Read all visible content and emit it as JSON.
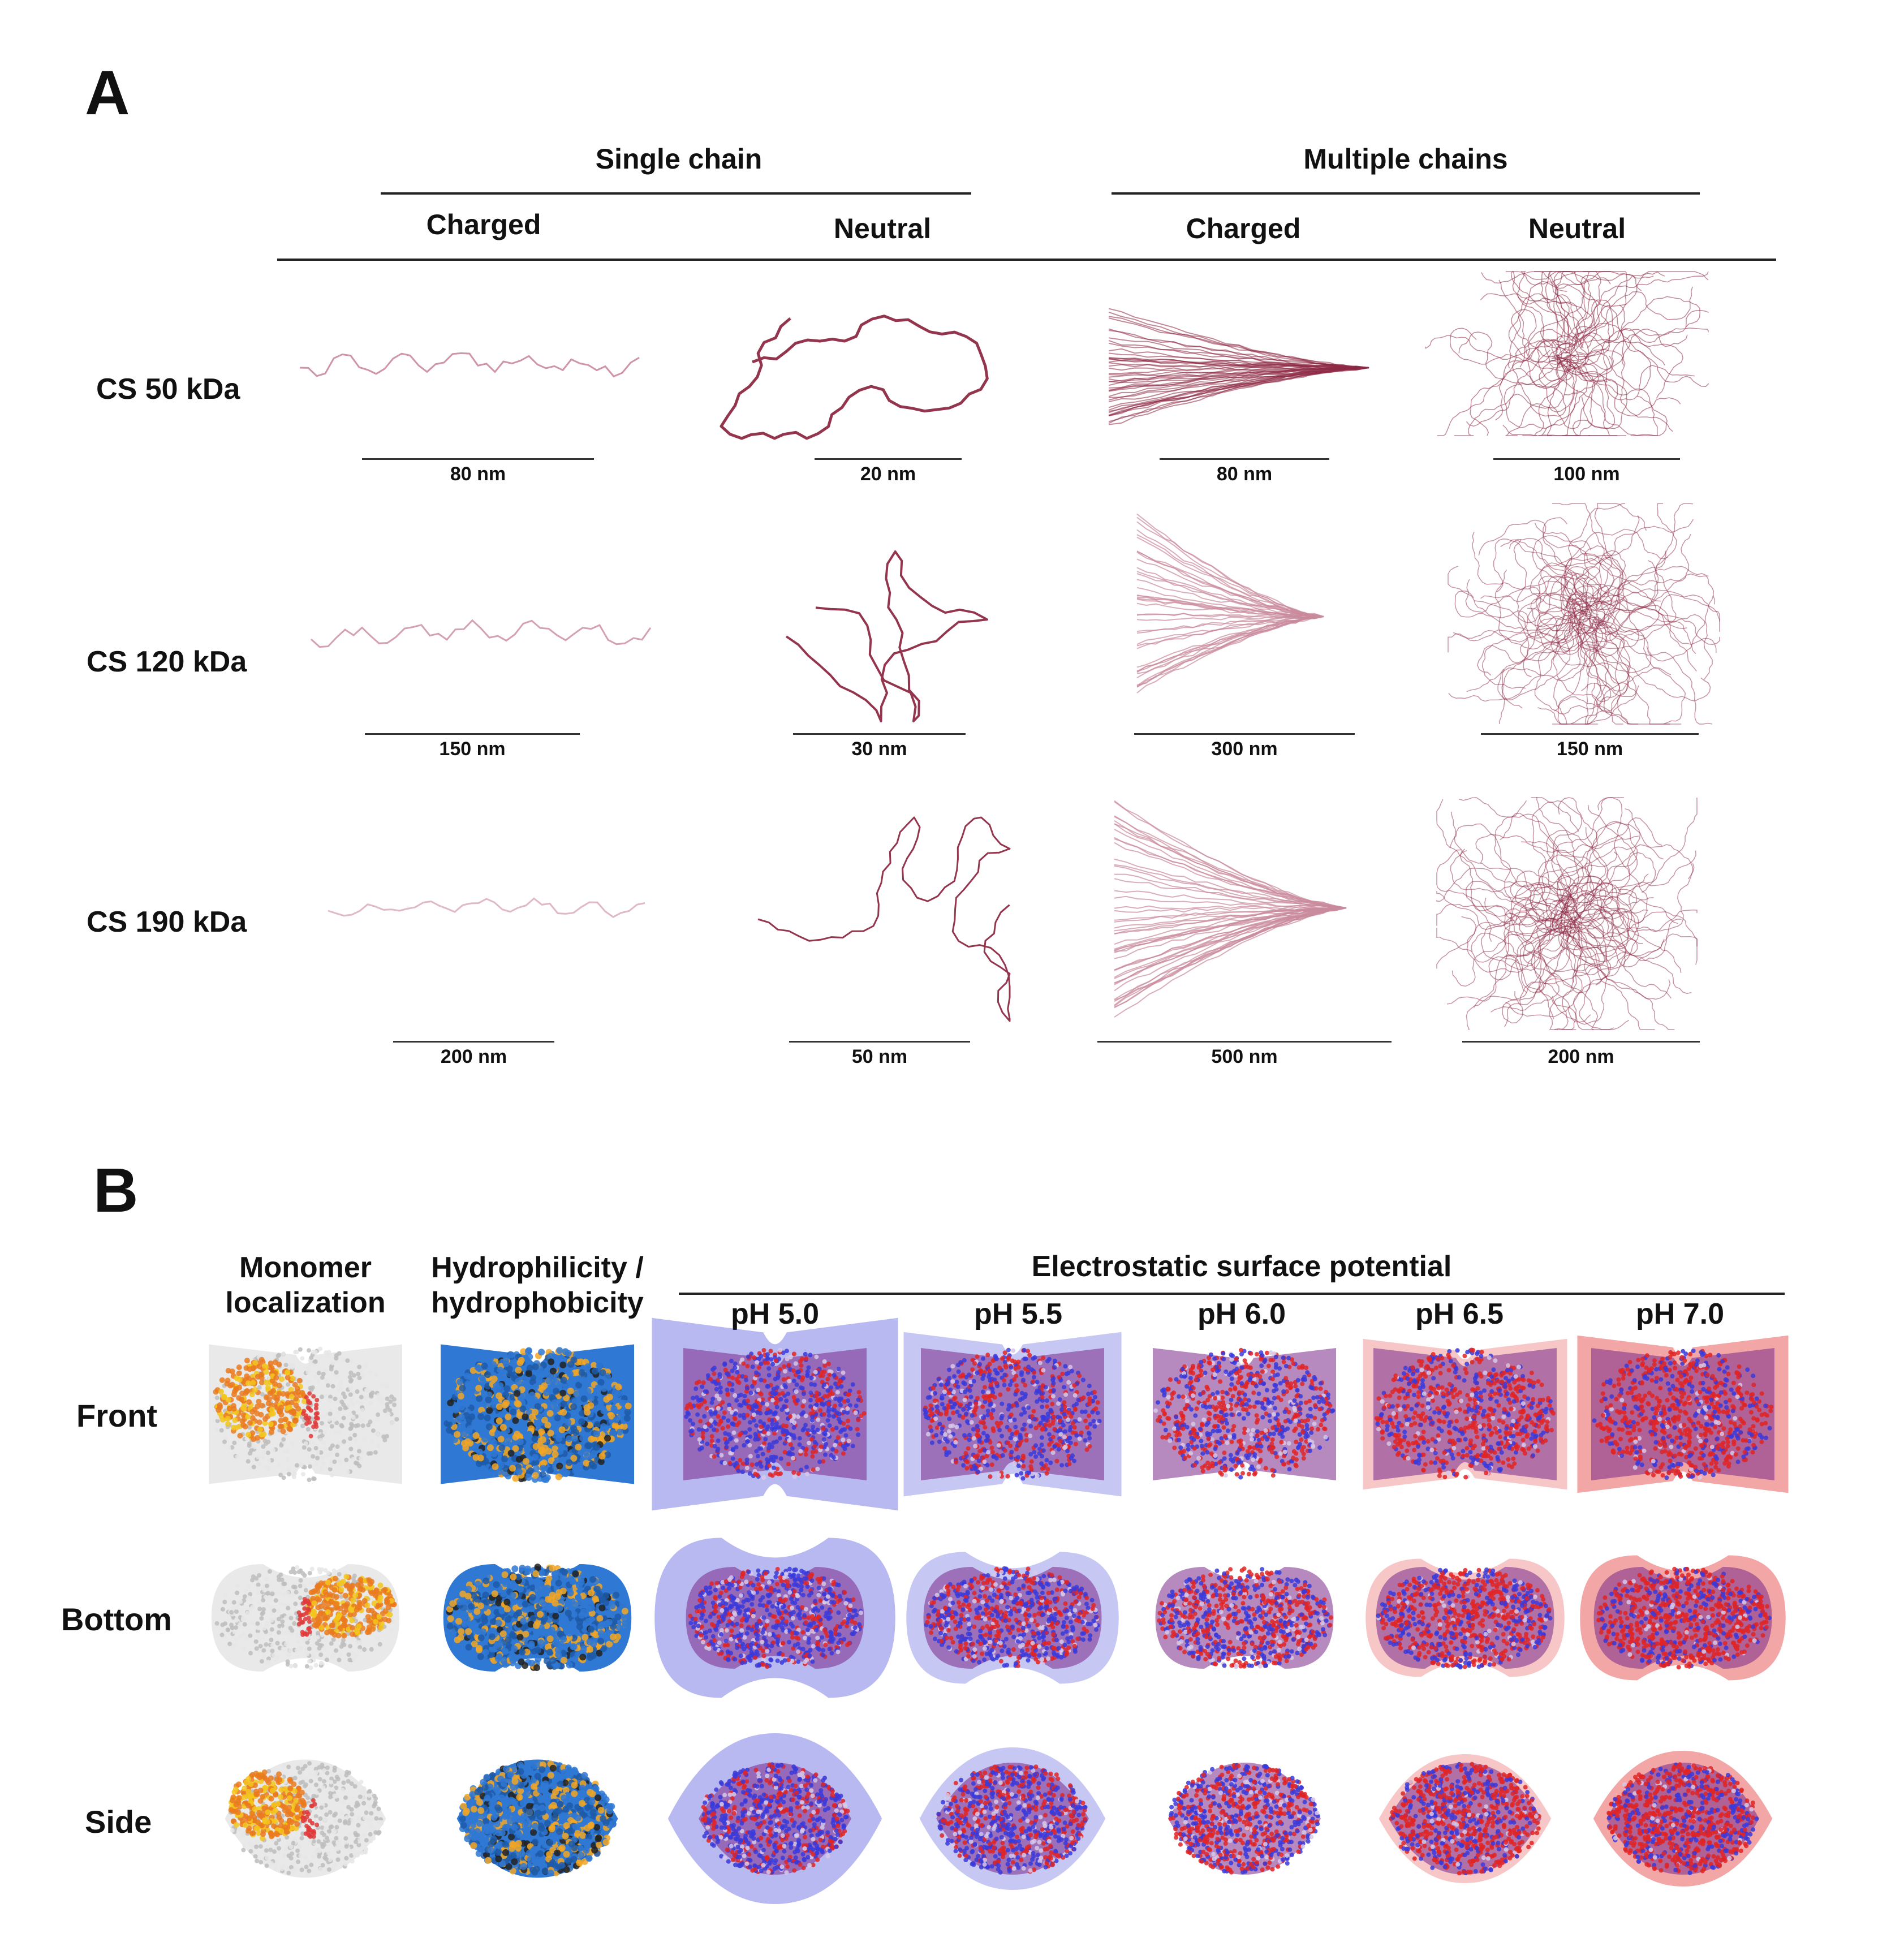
{
  "panel_a": {
    "letter": "A",
    "group_headers": [
      "Single chain",
      "Multiple chains"
    ],
    "column_headers": [
      "Charged",
      "Neutral",
      "Charged",
      "Neutral"
    ],
    "rows": [
      {
        "label": "CS 50 kDa",
        "scales": [
          "80 nm",
          "20 nm",
          "80 nm",
          "100 nm"
        ]
      },
      {
        "label": "CS 120 kDa",
        "scales": [
          "150 nm",
          "30 nm",
          "300 nm",
          "150 nm"
        ]
      },
      {
        "label": "CS 190 kDa",
        "scales": [
          "200 nm",
          "50 nm",
          "500 nm",
          "200 nm"
        ]
      }
    ],
    "colors": {
      "chain": "#8e2a45",
      "chain_light": "#c98a9c"
    }
  },
  "panel_b": {
    "letter": "B",
    "column_headers": {
      "monomer": [
        "Monomer",
        "localization"
      ],
      "hydro": [
        "Hydrophilicity /",
        "hydrophobicity"
      ],
      "electro": "Electrostatic surface potential",
      "ph": [
        "pH 5.0",
        "pH 5.5",
        "pH 6.0",
        "pH 6.5",
        "pH 7.0"
      ]
    },
    "rows": [
      "Front",
      "Bottom",
      "Side"
    ],
    "colors": {
      "hydrophilic": "#2f78d4",
      "hydrophobic": "#f2a623",
      "positive": "#3a3adb",
      "negative": "#e02424",
      "monomer_orange": "#ea7a1e",
      "monomer_yellow": "#f3c61c",
      "monomer_grey": "#cfcfcf"
    }
  }
}
